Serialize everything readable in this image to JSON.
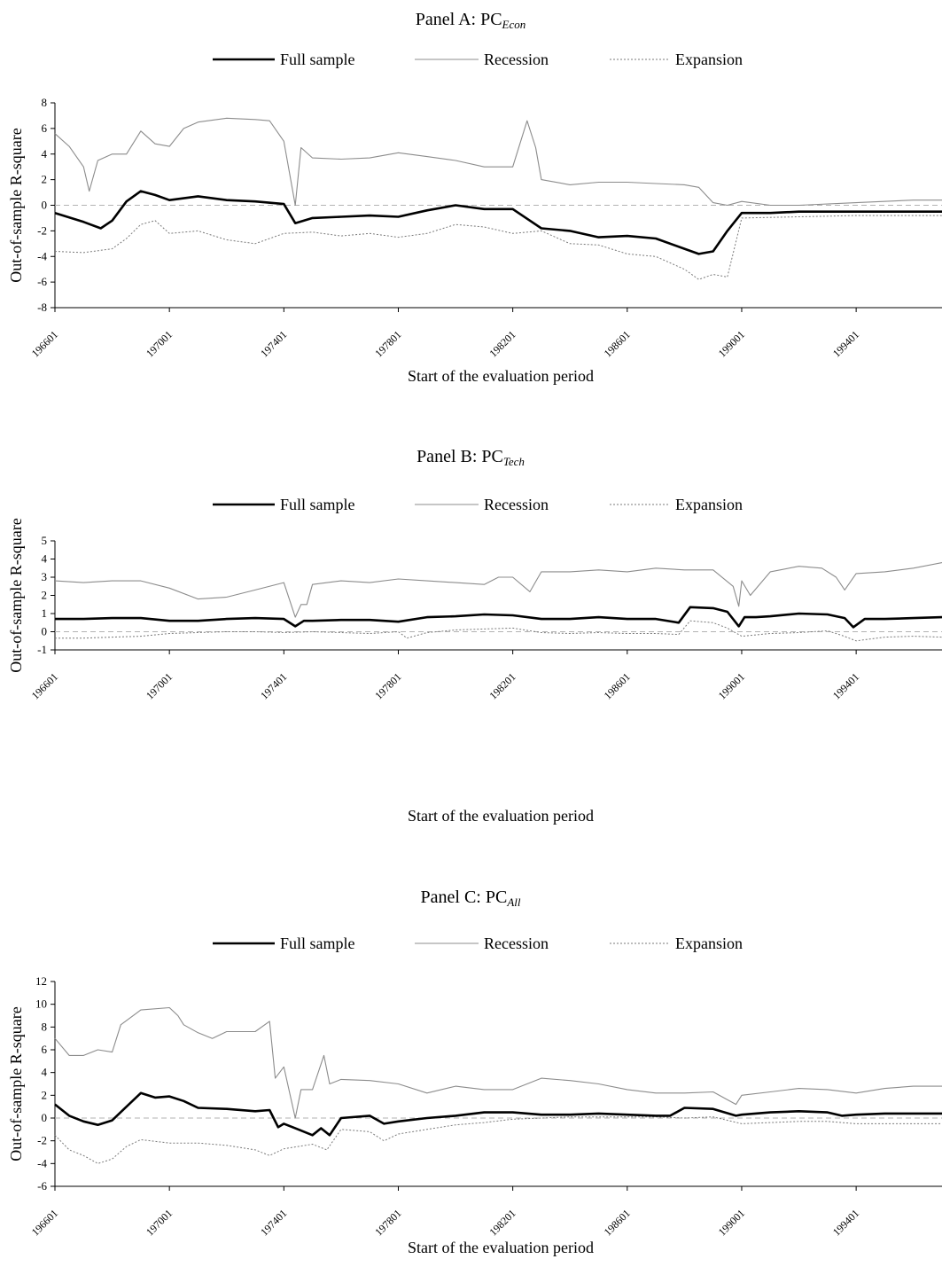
{
  "legend": {
    "full": "Full sample",
    "recession": "Recession",
    "expansion": "Expansion"
  },
  "colors": {
    "full": "#000000",
    "recession": "#8c8c8c",
    "expansion": "#7a7a7a",
    "zero": "#b3b3b3"
  },
  "chart_data": [
    {
      "type": "line",
      "title_prefix": "Panel A: PC",
      "title_sub": "Econ",
      "xlabel": "Start of the evaluation period",
      "ylabel": "Out-of-sample R-square",
      "x_ticks": [
        "196601",
        "197001",
        "197401",
        "197801",
        "198201",
        "198601",
        "199001",
        "199401"
      ],
      "x_range": [
        1966.0,
        1997.0
      ],
      "ylim": [
        -8,
        8
      ],
      "y_ticks": [
        "-8",
        "-6",
        "-4",
        "-2",
        "0",
        "2",
        "4",
        "6",
        "8"
      ],
      "series": [
        {
          "name": "Full sample",
          "style": "full",
          "x": [
            1966.0,
            1967.0,
            1967.6,
            1968.0,
            1968.5,
            1969.0,
            1969.5,
            1970.0,
            1971.0,
            1972.0,
            1973.0,
            1974.0,
            1974.4,
            1975.0,
            1976.0,
            1977.0,
            1978.0,
            1979.0,
            1980.0,
            1981.0,
            1982.0,
            1983.0,
            1984.0,
            1985.0,
            1986.0,
            1987.0,
            1988.0,
            1988.5,
            1989.0,
            1989.5,
            1990.0,
            1991.0,
            1992.0,
            1994.0,
            1996.0,
            1997.0
          ],
          "y": [
            -0.6,
            -1.3,
            -1.8,
            -1.2,
            0.3,
            1.1,
            0.8,
            0.4,
            0.7,
            0.4,
            0.3,
            0.1,
            -1.4,
            -1.0,
            -0.9,
            -0.8,
            -0.9,
            -0.4,
            0.0,
            -0.3,
            -0.3,
            -1.8,
            -2.0,
            -2.5,
            -2.4,
            -2.6,
            -3.4,
            -3.8,
            -3.6,
            -2.0,
            -0.6,
            -0.6,
            -0.5,
            -0.5,
            -0.5,
            -0.5
          ]
        },
        {
          "name": "Recession",
          "style": "recession",
          "x": [
            1966.0,
            1966.5,
            1967.0,
            1967.2,
            1967.5,
            1968.0,
            1968.5,
            1969.0,
            1969.5,
            1970.0,
            1970.5,
            1971.0,
            1972.0,
            1973.0,
            1973.5,
            1974.0,
            1974.4,
            1974.6,
            1975.0,
            1976.0,
            1977.0,
            1978.0,
            1979.0,
            1980.0,
            1981.0,
            1982.0,
            1982.5,
            1982.8,
            1983.0,
            1984.0,
            1985.0,
            1986.0,
            1987.0,
            1988.0,
            1988.5,
            1989.0,
            1989.5,
            1990.0,
            1991.0,
            1992.0,
            1994.0,
            1996.0,
            1997.0
          ],
          "y": [
            5.6,
            4.6,
            3.0,
            1.1,
            3.5,
            4.0,
            4.0,
            5.8,
            4.8,
            4.6,
            6.0,
            6.5,
            6.8,
            6.7,
            6.6,
            5.0,
            0.0,
            4.5,
            3.7,
            3.6,
            3.7,
            4.1,
            3.8,
            3.5,
            3.0,
            3.0,
            6.6,
            4.5,
            2.0,
            1.6,
            1.8,
            1.8,
            1.7,
            1.6,
            1.4,
            0.2,
            0.0,
            0.3,
            0.0,
            0.0,
            0.2,
            0.4,
            0.4
          ]
        },
        {
          "name": "Expansion",
          "style": "expansion",
          "x": [
            1966.0,
            1967.0,
            1968.0,
            1968.5,
            1969.0,
            1969.5,
            1970.0,
            1971.0,
            1972.0,
            1973.0,
            1974.0,
            1975.0,
            1976.0,
            1977.0,
            1978.0,
            1979.0,
            1980.0,
            1981.0,
            1982.0,
            1983.0,
            1984.0,
            1985.0,
            1986.0,
            1987.0,
            1988.0,
            1988.5,
            1989.0,
            1989.5,
            1990.0,
            1992.0,
            1994.0,
            1996.0,
            1997.0
          ],
          "y": [
            -3.6,
            -3.7,
            -3.4,
            -2.6,
            -1.5,
            -1.2,
            -2.2,
            -2.0,
            -2.7,
            -3.0,
            -2.2,
            -2.1,
            -2.4,
            -2.2,
            -2.5,
            -2.2,
            -1.5,
            -1.7,
            -2.2,
            -2.0,
            -3.0,
            -3.1,
            -3.8,
            -4.0,
            -5.0,
            -5.8,
            -5.4,
            -5.6,
            -1.0,
            -0.9,
            -0.8,
            -0.8,
            -0.8
          ]
        }
      ]
    },
    {
      "type": "line",
      "title_prefix": "Panel B: PC",
      "title_sub": "Tech",
      "xlabel": "Start of the evaluation period",
      "ylabel": "Out-of-sample R-square",
      "x_ticks": [
        "196601",
        "197001",
        "197401",
        "197801",
        "198201",
        "198601",
        "199001",
        "199401"
      ],
      "x_range": [
        1966.0,
        1997.0
      ],
      "ylim": [
        -1,
        5
      ],
      "y_ticks": [
        "-1",
        "0",
        "1",
        "2",
        "3",
        "4",
        "5"
      ],
      "series": [
        {
          "name": "Full sample",
          "style": "full",
          "x": [
            1966.0,
            1967.0,
            1968.0,
            1969.0,
            1970.0,
            1971.0,
            1972.0,
            1973.0,
            1974.0,
            1974.4,
            1974.7,
            1975.0,
            1976.0,
            1977.0,
            1978.0,
            1979.0,
            1980.0,
            1981.0,
            1982.0,
            1983.0,
            1984.0,
            1985.0,
            1986.0,
            1987.0,
            1987.8,
            1988.2,
            1989.0,
            1989.5,
            1989.9,
            1990.1,
            1990.5,
            1991.0,
            1992.0,
            1993.0,
            1993.6,
            1993.9,
            1994.3,
            1995.0,
            1996.0,
            1997.0
          ],
          "y": [
            0.7,
            0.7,
            0.75,
            0.75,
            0.6,
            0.6,
            0.7,
            0.75,
            0.7,
            0.3,
            0.6,
            0.6,
            0.65,
            0.65,
            0.55,
            0.8,
            0.85,
            0.95,
            0.9,
            0.7,
            0.7,
            0.8,
            0.7,
            0.7,
            0.5,
            1.35,
            1.3,
            1.1,
            0.3,
            0.8,
            0.8,
            0.85,
            1.0,
            0.95,
            0.75,
            0.25,
            0.7,
            0.7,
            0.75,
            0.8
          ]
        },
        {
          "name": "Recession",
          "style": "recession",
          "x": [
            1966.0,
            1967.0,
            1968.0,
            1969.0,
            1970.0,
            1971.0,
            1972.0,
            1973.0,
            1974.0,
            1974.4,
            1974.6,
            1974.8,
            1975.0,
            1976.0,
            1977.0,
            1978.0,
            1979.0,
            1980.0,
            1981.0,
            1981.5,
            1982.0,
            1982.6,
            1983.0,
            1984.0,
            1985.0,
            1986.0,
            1987.0,
            1988.0,
            1989.0,
            1989.7,
            1989.9,
            1990.0,
            1990.3,
            1991.0,
            1992.0,
            1992.8,
            1993.3,
            1993.6,
            1994.0,
            1995.0,
            1996.0,
            1997.0
          ],
          "y": [
            2.8,
            2.7,
            2.8,
            2.8,
            2.4,
            1.8,
            1.9,
            2.3,
            2.7,
            0.8,
            1.5,
            1.5,
            2.6,
            2.8,
            2.7,
            2.9,
            2.8,
            2.7,
            2.6,
            3.0,
            3.0,
            2.2,
            3.3,
            3.3,
            3.4,
            3.3,
            3.5,
            3.4,
            3.4,
            2.5,
            1.4,
            2.8,
            2.0,
            3.3,
            3.6,
            3.5,
            3.0,
            2.3,
            3.2,
            3.3,
            3.5,
            3.8
          ]
        },
        {
          "name": "Expansion",
          "style": "expansion",
          "x": [
            1966.0,
            1967.0,
            1968.0,
            1969.0,
            1970.0,
            1971.0,
            1972.0,
            1973.0,
            1974.0,
            1975.0,
            1976.0,
            1977.0,
            1978.0,
            1978.3,
            1979.0,
            1980.0,
            1981.0,
            1982.0,
            1983.0,
            1984.0,
            1985.0,
            1986.0,
            1987.0,
            1987.8,
            1988.2,
            1989.0,
            1989.5,
            1990.0,
            1991.0,
            1992.0,
            1993.0,
            1993.5,
            1994.0,
            1995.0,
            1996.0,
            1997.0
          ],
          "y": [
            -0.35,
            -0.35,
            -0.3,
            -0.25,
            -0.1,
            -0.05,
            0.0,
            0.0,
            -0.05,
            0.0,
            -0.05,
            -0.1,
            0.0,
            -0.35,
            -0.05,
            0.1,
            0.15,
            0.2,
            -0.05,
            -0.1,
            -0.05,
            -0.1,
            -0.1,
            -0.15,
            0.6,
            0.5,
            0.2,
            -0.25,
            -0.1,
            -0.05,
            0.05,
            -0.2,
            -0.5,
            -0.3,
            -0.25,
            -0.3
          ]
        }
      ]
    },
    {
      "type": "line",
      "title_prefix": "Panel C: PC",
      "title_sub": "All",
      "xlabel": "Start of the evaluation period",
      "ylabel": "Out-of-sample R-square",
      "x_ticks": [
        "196601",
        "197001",
        "197401",
        "197801",
        "198201",
        "198601",
        "199001",
        "199401"
      ],
      "x_range": [
        1966.0,
        1997.0
      ],
      "ylim": [
        -6,
        12
      ],
      "y_ticks": [
        "-6",
        "-4",
        "-2",
        "0",
        "2",
        "4",
        "6",
        "8",
        "10",
        "12"
      ],
      "series": [
        {
          "name": "Full sample",
          "style": "full",
          "x": [
            1966.0,
            1966.5,
            1967.0,
            1967.5,
            1968.0,
            1968.5,
            1969.0,
            1969.5,
            1970.0,
            1970.5,
            1971.0,
            1972.0,
            1973.0,
            1973.5,
            1973.8,
            1974.0,
            1974.5,
            1975.0,
            1975.3,
            1975.6,
            1976.0,
            1977.0,
            1977.5,
            1978.0,
            1979.0,
            1980.0,
            1981.0,
            1982.0,
            1983.0,
            1984.0,
            1985.0,
            1986.0,
            1987.0,
            1987.5,
            1988.0,
            1989.0,
            1989.8,
            1990.0,
            1991.0,
            1992.0,
            1993.0,
            1993.5,
            1994.0,
            1995.0,
            1996.0,
            1997.0
          ],
          "y": [
            1.2,
            0.2,
            -0.3,
            -0.6,
            -0.2,
            1.0,
            2.2,
            1.8,
            1.9,
            1.5,
            0.9,
            0.8,
            0.6,
            0.7,
            -0.8,
            -0.5,
            -1.0,
            -1.5,
            -0.9,
            -1.5,
            0.0,
            0.2,
            -0.5,
            -0.3,
            0.0,
            0.2,
            0.5,
            0.5,
            0.3,
            0.3,
            0.4,
            0.3,
            0.2,
            0.2,
            0.9,
            0.8,
            0.2,
            0.3,
            0.5,
            0.6,
            0.5,
            0.2,
            0.3,
            0.4,
            0.4,
            0.4
          ]
        },
        {
          "name": "Recession",
          "style": "recession",
          "x": [
            1966.0,
            1966.5,
            1967.0,
            1967.5,
            1968.0,
            1968.3,
            1969.0,
            1970.0,
            1970.3,
            1970.5,
            1971.0,
            1971.5,
            1972.0,
            1973.0,
            1973.5,
            1973.7,
            1974.0,
            1974.4,
            1974.6,
            1975.0,
            1975.4,
            1975.6,
            1976.0,
            1977.0,
            1978.0,
            1979.0,
            1980.0,
            1981.0,
            1982.0,
            1983.0,
            1984.0,
            1985.0,
            1986.0,
            1987.0,
            1988.0,
            1989.0,
            1989.8,
            1990.0,
            1991.0,
            1992.0,
            1993.0,
            1994.0,
            1995.0,
            1996.0,
            1997.0
          ],
          "y": [
            7.0,
            5.5,
            5.5,
            6.0,
            5.8,
            8.2,
            9.5,
            9.7,
            9.0,
            8.2,
            7.5,
            7.0,
            7.6,
            7.6,
            8.5,
            3.5,
            4.5,
            0.0,
            2.5,
            2.5,
            5.5,
            3.0,
            3.4,
            3.3,
            3.0,
            2.2,
            2.8,
            2.5,
            2.5,
            3.5,
            3.3,
            3.0,
            2.5,
            2.2,
            2.2,
            2.3,
            1.2,
            2.0,
            2.3,
            2.6,
            2.5,
            2.2,
            2.6,
            2.8,
            2.8
          ]
        },
        {
          "name": "Expansion",
          "style": "expansion",
          "x": [
            1966.0,
            1966.5,
            1967.0,
            1967.5,
            1968.0,
            1968.5,
            1969.0,
            1970.0,
            1971.0,
            1972.0,
            1973.0,
            1973.5,
            1974.0,
            1975.0,
            1975.5,
            1976.0,
            1977.0,
            1977.5,
            1978.0,
            1979.0,
            1980.0,
            1981.0,
            1982.0,
            1983.0,
            1984.0,
            1985.0,
            1986.0,
            1987.0,
            1988.0,
            1989.0,
            1990.0,
            1991.0,
            1992.0,
            1993.0,
            1994.0,
            1995.0,
            1996.0,
            1997.0
          ],
          "y": [
            -1.5,
            -2.8,
            -3.3,
            -4.0,
            -3.6,
            -2.5,
            -1.9,
            -2.2,
            -2.2,
            -2.4,
            -2.8,
            -3.3,
            -2.7,
            -2.3,
            -2.8,
            -1.0,
            -1.2,
            -2.0,
            -1.4,
            -1.0,
            -0.6,
            -0.4,
            -0.1,
            0.0,
            0.1,
            0.1,
            0.1,
            0.1,
            0.0,
            0.1,
            -0.5,
            -0.4,
            -0.3,
            -0.3,
            -0.5,
            -0.5,
            -0.5,
            -0.5
          ]
        }
      ]
    }
  ]
}
